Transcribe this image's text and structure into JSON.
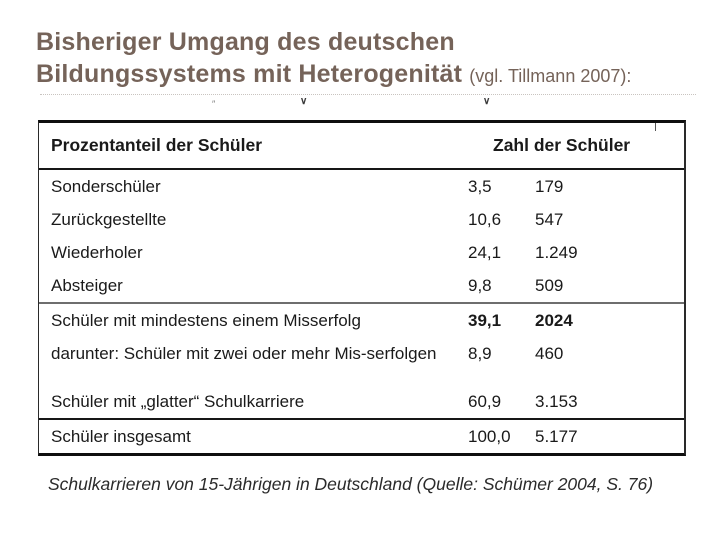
{
  "title": {
    "line1": "Bisheriger Umgang des deutschen",
    "line2": "Bildungssystems mit Heterogenität",
    "suffix": "(vgl. Tillmann 2007):"
  },
  "artifacts": {
    "ditto_mark": "″",
    "chevron_mark": "∨"
  },
  "table": {
    "header": {
      "left": "Prozentanteil der Schüler",
      "right": "Zahl der Schüler"
    },
    "rows": [
      {
        "label": "Sonderschüler",
        "percent": "3,5",
        "count": "179"
      },
      {
        "label": "Zurückgestellte",
        "percent": "10,6",
        "count": "547"
      },
      {
        "label": "Wiederholer",
        "percent": "24,1",
        "count": "1.249"
      },
      {
        "label": "Absteiger",
        "percent": "9,8",
        "count": "509"
      },
      {
        "label": "Schüler mit mindestens einem Misserfolg",
        "percent": "39,1",
        "count": "2024"
      },
      {
        "label": "darunter: Schüler mit zwei oder mehr Mis-serfolgen",
        "percent": "8,9",
        "count": "460"
      },
      {
        "label": "Schüler mit „glatter“ Schulkarriere",
        "percent": "60,9",
        "count": "3.153"
      },
      {
        "label": "Schüler insgesamt",
        "percent": "100,0",
        "count": "5.177"
      }
    ]
  },
  "caption": "Schulkarrieren von 15-Jährigen in Deutschland (Quelle: Schümer 2004, S. 76)",
  "colors": {
    "title_text": "#756359",
    "table_text": "#1a1a1a",
    "table_rule": "#161616",
    "group_rule_gray": "#6e6e6e",
    "background": "#ffffff"
  }
}
